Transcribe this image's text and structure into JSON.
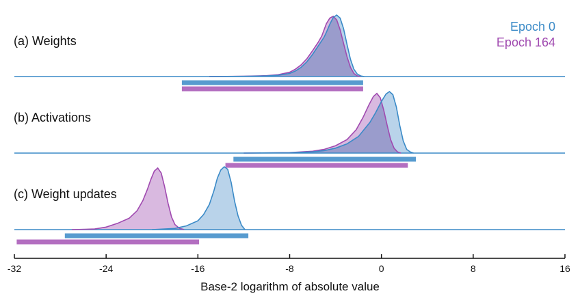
{
  "colors": {
    "epoch0": "#3a8ac7",
    "epoch0_fill": "#b9d3ea",
    "epoch164": "#a04ab0",
    "epoch164_fill": "#d9b9e0",
    "overlap_fill": "#9a9ccc",
    "baseline": "#3a8ac7",
    "axis": "#111111"
  },
  "chart_data": {
    "type": "area",
    "title": "",
    "xlabel": "Base-2 logarithm of absolute value",
    "ylabel": "",
    "xlim": [
      -32,
      16
    ],
    "xticks": [
      -32,
      -24,
      -16,
      -8,
      0,
      8,
      16
    ],
    "xtick_labels": [
      "-32",
      "-24",
      "-16",
      "-8",
      "0",
      "8",
      "16"
    ],
    "legend": {
      "placement": "top-right",
      "entries": [
        "Epoch 0",
        "Epoch 164"
      ]
    },
    "panels": [
      {
        "label": "(a) Weights",
        "ranges": {
          "epoch0": [
            -17.4,
            -1.6
          ],
          "epoch164": [
            -17.4,
            -1.6
          ]
        },
        "series": [
          {
            "name": "Epoch 0",
            "points": [
              [
                -15,
                0
              ],
              [
                -12,
                0.003
              ],
              [
                -10,
                0.01
              ],
              [
                -9,
                0.02
              ],
              [
                -8,
                0.05
              ],
              [
                -7.5,
                0.09
              ],
              [
                -7,
                0.15
              ],
              [
                -6.5,
                0.24
              ],
              [
                -6,
                0.36
              ],
              [
                -5.5,
                0.5
              ],
              [
                -5,
                0.64
              ],
              [
                -4.8,
                0.72
              ],
              [
                -4.5,
                0.85
              ],
              [
                -4.2,
                0.96
              ],
              [
                -3.9,
                1.0
              ],
              [
                -3.6,
                0.95
              ],
              [
                -3.3,
                0.78
              ],
              [
                -3.0,
                0.52
              ],
              [
                -2.7,
                0.28
              ],
              [
                -2.4,
                0.12
              ],
              [
                -2.1,
                0.04
              ],
              [
                -1.8,
                0.01
              ],
              [
                -1.5,
                0
              ]
            ]
          },
          {
            "name": "Epoch 164",
            "points": [
              [
                -15,
                0
              ],
              [
                -12,
                0.004
              ],
              [
                -10,
                0.015
              ],
              [
                -9,
                0.03
              ],
              [
                -8,
                0.07
              ],
              [
                -7.5,
                0.12
              ],
              [
                -7,
                0.19
              ],
              [
                -6.5,
                0.29
              ],
              [
                -6,
                0.42
              ],
              [
                -5.5,
                0.56
              ],
              [
                -5.2,
                0.66
              ],
              [
                -5.0,
                0.76
              ],
              [
                -4.8,
                0.86
              ],
              [
                -4.5,
                0.95
              ],
              [
                -4.2,
                0.98
              ],
              [
                -3.9,
                0.92
              ],
              [
                -3.6,
                0.76
              ],
              [
                -3.3,
                0.54
              ],
              [
                -3.0,
                0.32
              ],
              [
                -2.7,
                0.15
              ],
              [
                -2.4,
                0.05
              ],
              [
                -2.1,
                0.01
              ],
              [
                -1.8,
                0
              ]
            ]
          }
        ]
      },
      {
        "label": "(b) Activations",
        "ranges": {
          "epoch0": [
            -12.9,
            3.0
          ],
          "epoch164": [
            -13.6,
            2.3
          ]
        },
        "series": [
          {
            "name": "Epoch 0",
            "points": [
              [
                -12,
                0
              ],
              [
                -8,
                0.005
              ],
              [
                -6,
                0.02
              ],
              [
                -5,
                0.04
              ],
              [
                -4,
                0.08
              ],
              [
                -3,
                0.15
              ],
              [
                -2,
                0.27
              ],
              [
                -1,
                0.5
              ],
              [
                -0.5,
                0.66
              ],
              [
                0,
                0.84
              ],
              [
                0.4,
                0.96
              ],
              [
                0.7,
                1.0
              ],
              [
                1.0,
                0.95
              ],
              [
                1.3,
                0.75
              ],
              [
                1.6,
                0.45
              ],
              [
                1.9,
                0.2
              ],
              [
                2.2,
                0.06
              ],
              [
                2.5,
                0.02
              ],
              [
                2.8,
                0
              ]
            ]
          },
          {
            "name": "Epoch 164",
            "points": [
              [
                -12,
                0
              ],
              [
                -8,
                0.008
              ],
              [
                -6,
                0.03
              ],
              [
                -5,
                0.06
              ],
              [
                -4,
                0.12
              ],
              [
                -3,
                0.22
              ],
              [
                -2.2,
                0.38
              ],
              [
                -1.6,
                0.58
              ],
              [
                -1.1,
                0.78
              ],
              [
                -0.7,
                0.92
              ],
              [
                -0.4,
                0.97
              ],
              [
                -0.1,
                0.9
              ],
              [
                0.2,
                0.7
              ],
              [
                0.5,
                0.45
              ],
              [
                0.8,
                0.22
              ],
              [
                1.1,
                0.08
              ],
              [
                1.4,
                0.02
              ],
              [
                1.7,
                0
              ]
            ]
          }
        ]
      },
      {
        "label": "(c) Weight updates",
        "ranges": {
          "epoch0": [
            -27.6,
            -11.6
          ],
          "epoch164": [
            -31.8,
            -15.9
          ]
        },
        "series": [
          {
            "name": "Epoch 0",
            "points": [
              [
                -20,
                0
              ],
              [
                -18,
                0.02
              ],
              [
                -17,
                0.06
              ],
              [
                -16,
                0.14
              ],
              [
                -15.5,
                0.24
              ],
              [
                -15,
                0.4
              ],
              [
                -14.6,
                0.62
              ],
              [
                -14.3,
                0.82
              ],
              [
                -14.0,
                0.95
              ],
              [
                -13.7,
                1.0
              ],
              [
                -13.4,
                0.96
              ],
              [
                -13.1,
                0.75
              ],
              [
                -12.8,
                0.45
              ],
              [
                -12.5,
                0.22
              ],
              [
                -12.2,
                0.07
              ],
              [
                -11.9,
                0
              ]
            ]
          },
          {
            "name": "Epoch 164",
            "points": [
              [
                -27,
                0
              ],
              [
                -25,
                0.01
              ],
              [
                -24,
                0.04
              ],
              [
                -23,
                0.1
              ],
              [
                -22,
                0.18
              ],
              [
                -21.3,
                0.3
              ],
              [
                -20.8,
                0.46
              ],
              [
                -20.4,
                0.64
              ],
              [
                -20.1,
                0.8
              ],
              [
                -19.8,
                0.93
              ],
              [
                -19.5,
                0.98
              ],
              [
                -19.2,
                0.9
              ],
              [
                -18.9,
                0.68
              ],
              [
                -18.6,
                0.42
              ],
              [
                -18.3,
                0.2
              ],
              [
                -18.0,
                0.08
              ],
              [
                -17.6,
                0.02
              ],
              [
                -17.2,
                0
              ]
            ]
          }
        ]
      }
    ]
  }
}
